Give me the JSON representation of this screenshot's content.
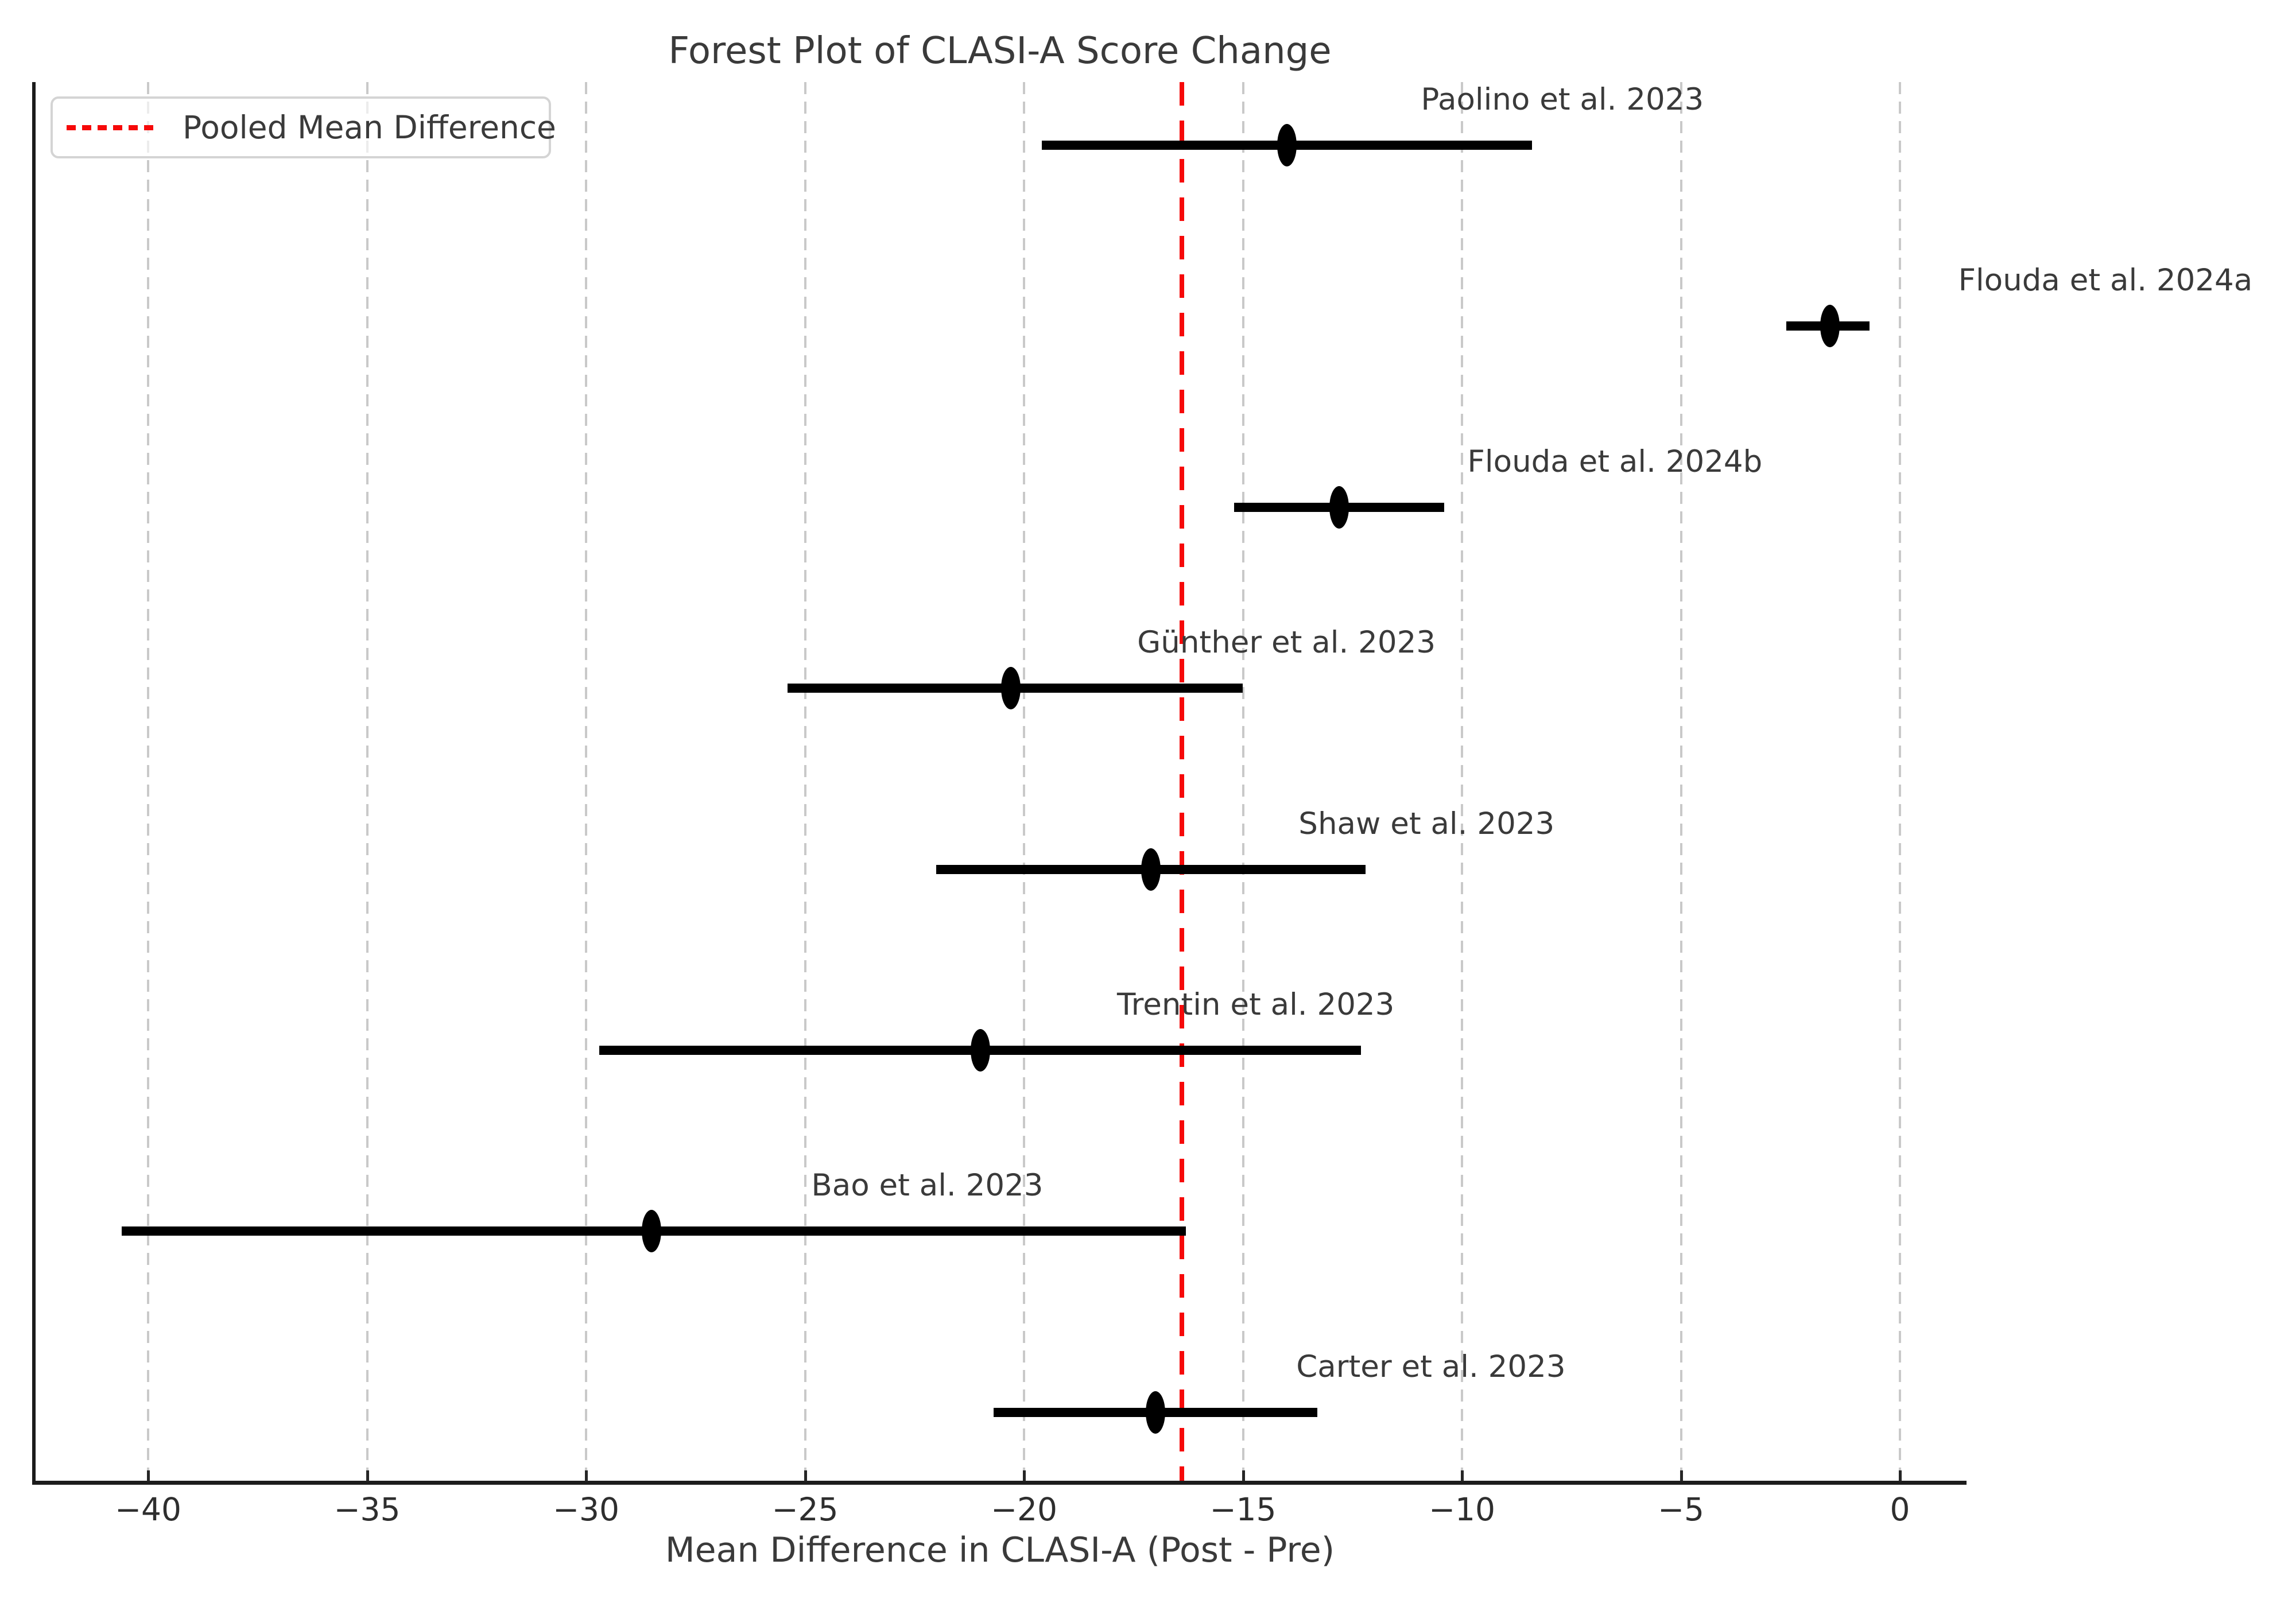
{
  "title": "Forest Plot of CLASI-A Score Change",
  "legend": {
    "pooled_label": "Pooled Mean Difference"
  },
  "chart_data": {
    "type": "scatter",
    "subtype": "forest-plot",
    "title": "Forest Plot of CLASI-A Score Change",
    "xlabel": "Mean Difference in CLASI-A (Post - Pre)",
    "ylabel": "",
    "xlim": [
      -42.6,
      1.5
    ],
    "xticks": [
      -40,
      -35,
      -30,
      -25,
      -20,
      -15,
      -10,
      -5,
      0
    ],
    "xtick_labels": [
      "−40",
      "−35",
      "−30",
      "−25",
      "−20",
      "−15",
      "−10",
      "−5",
      "0"
    ],
    "grid": "vertical dashed gridlines on",
    "legend_position": "upper left",
    "legend_entries": [
      "Pooled Mean Difference"
    ],
    "pooled_mean_difference": -16.4,
    "studies": [
      {
        "label": "Paolino et al. 2023",
        "mean": -14.0,
        "ci_low": -19.6,
        "ci_high": -8.4
      },
      {
        "label": "Flouda et al. 2024a",
        "mean": -1.6,
        "ci_low": -2.6,
        "ci_high": -0.7
      },
      {
        "label": "Flouda et al. 2024b",
        "mean": -12.8,
        "ci_low": -15.2,
        "ci_high": -10.4
      },
      {
        "label": "Günther et al. 2023",
        "mean": -20.3,
        "ci_low": -25.4,
        "ci_high": -15.0
      },
      {
        "label": "Shaw et al. 2023",
        "mean": -17.1,
        "ci_low": -22.0,
        "ci_high": -12.2
      },
      {
        "label": "Trentin et al. 2023",
        "mean": -21.0,
        "ci_low": -29.7,
        "ci_high": -12.3
      },
      {
        "label": "Bao et al. 2023",
        "mean": -28.5,
        "ci_low": -40.6,
        "ci_high": -16.3
      },
      {
        "label": "Carter et al. 2023",
        "mean": -17.0,
        "ci_low": -20.7,
        "ci_high": -13.3
      }
    ],
    "colors": {
      "marker": "#000000",
      "ci_line": "#000000",
      "pooled_line": "#f60909",
      "gridline": "#c9c9c9",
      "spine": "#1c1c1c",
      "text": "#3a3a3a"
    }
  }
}
